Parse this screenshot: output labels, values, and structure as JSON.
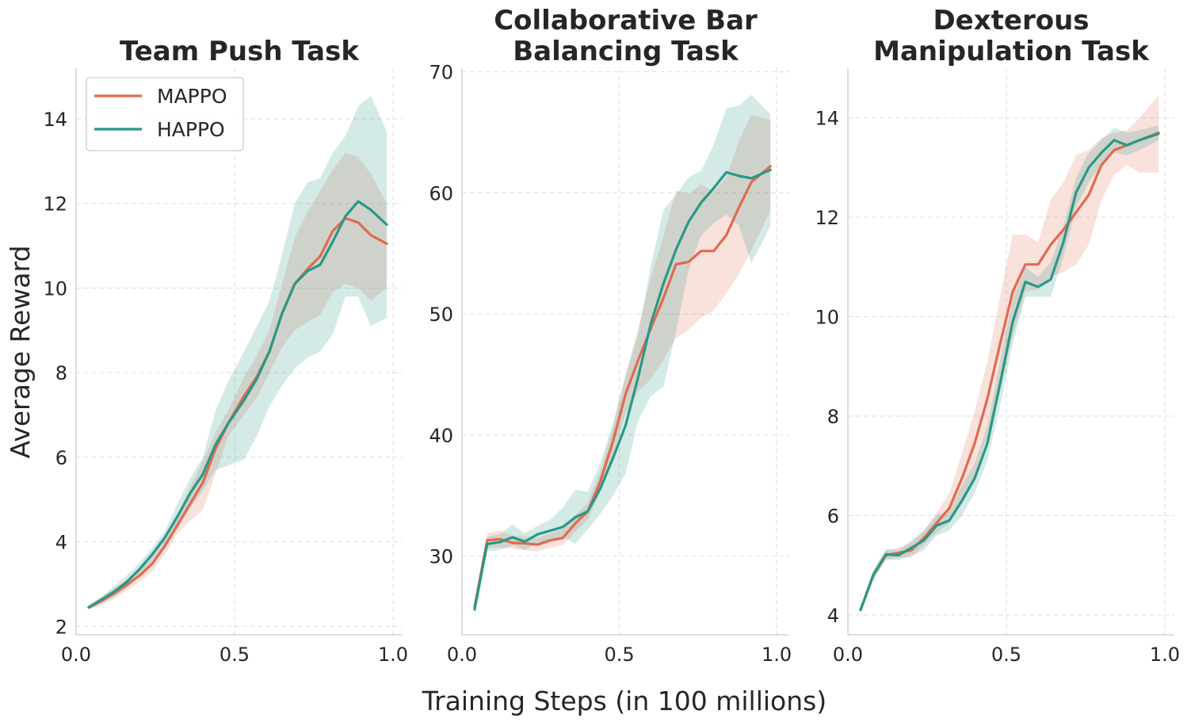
{
  "figure": {
    "xlabel": "Training Steps (in 100 millions)",
    "ylabel": "Average Reward"
  },
  "legend": [
    {
      "name": "MAPPO",
      "color": "#e06a50"
    },
    {
      "name": "HAPPO",
      "color": "#2a9886"
    }
  ],
  "chart_data": [
    {
      "type": "line",
      "title_lines": [
        "Team Push Task"
      ],
      "xlim": [
        0.0,
        1.03
      ],
      "ylim": [
        1.8,
        15.2
      ],
      "xticks": [
        0.0,
        0.5,
        1.0
      ],
      "xtick_labels": [
        "0.0",
        "0.5",
        "1.0"
      ],
      "yticks": [
        2,
        4,
        6,
        8,
        10,
        12,
        14
      ],
      "ytick_labels": [
        "2",
        "4",
        "6",
        "8",
        "10",
        "12",
        "14"
      ],
      "x": [
        0.04,
        0.08,
        0.12,
        0.16,
        0.2,
        0.24,
        0.28,
        0.32,
        0.36,
        0.4,
        0.44,
        0.48,
        0.53,
        0.57,
        0.61,
        0.65,
        0.69,
        0.73,
        0.77,
        0.81,
        0.85,
        0.89,
        0.93,
        0.98
      ],
      "series": [
        {
          "name": "MAPPO",
          "color": "#e06a50",
          "values": [
            2.45,
            2.6,
            2.78,
            2.98,
            3.2,
            3.48,
            3.9,
            4.4,
            4.9,
            5.4,
            6.2,
            6.8,
            7.45,
            7.9,
            8.5,
            9.4,
            10.1,
            10.45,
            10.75,
            11.35,
            11.65,
            11.55,
            11.25,
            11.05
          ],
          "lower": [
            2.4,
            2.5,
            2.65,
            2.85,
            3.05,
            3.3,
            3.7,
            4.2,
            4.5,
            4.75,
            5.6,
            6.5,
            7.0,
            7.4,
            8.0,
            8.6,
            9.0,
            9.2,
            9.35,
            9.9,
            10.1,
            10.0,
            9.7,
            10.0
          ],
          "upper": [
            2.5,
            2.7,
            2.9,
            3.1,
            3.35,
            3.65,
            4.1,
            4.6,
            5.3,
            5.9,
            6.6,
            7.1,
            7.9,
            8.4,
            9.0,
            10.1,
            11.2,
            11.8,
            12.3,
            12.8,
            13.2,
            13.1,
            12.7,
            12.0
          ]
        },
        {
          "name": "HAPPO",
          "color": "#2a9886",
          "values": [
            2.45,
            2.63,
            2.82,
            3.05,
            3.35,
            3.7,
            4.1,
            4.6,
            5.15,
            5.6,
            6.3,
            6.8,
            7.35,
            7.85,
            8.5,
            9.4,
            10.1,
            10.4,
            10.55,
            11.1,
            11.7,
            12.05,
            11.85,
            11.5
          ],
          "lower": [
            2.4,
            2.55,
            2.7,
            2.9,
            3.2,
            3.55,
            3.95,
            4.3,
            4.8,
            5.2,
            5.7,
            5.8,
            5.95,
            6.5,
            7.2,
            7.7,
            8.1,
            8.35,
            8.5,
            8.9,
            9.8,
            9.8,
            9.1,
            9.3
          ],
          "upper": [
            2.5,
            2.7,
            2.95,
            3.2,
            3.5,
            3.85,
            4.25,
            4.9,
            5.5,
            6.0,
            7.1,
            7.8,
            8.5,
            9.1,
            9.7,
            10.8,
            12.0,
            12.5,
            12.6,
            13.2,
            13.6,
            14.3,
            14.55,
            13.7
          ]
        }
      ]
    },
    {
      "type": "line",
      "title_lines": [
        "Collaborative Bar",
        "Balancing Task"
      ],
      "xlim": [
        0.0,
        1.04
      ],
      "ylim": [
        23.5,
        70.3
      ],
      "xticks": [
        0.0,
        0.5,
        1.0
      ],
      "xtick_labels": [
        "0.0",
        "0.5",
        "1.0"
      ],
      "yticks": [
        30,
        40,
        50,
        60,
        70
      ],
      "ytick_labels": [
        "30",
        "40",
        "50",
        "60",
        "70"
      ],
      "x": [
        0.04,
        0.08,
        0.12,
        0.16,
        0.2,
        0.24,
        0.28,
        0.32,
        0.36,
        0.4,
        0.44,
        0.48,
        0.52,
        0.56,
        0.6,
        0.64,
        0.68,
        0.72,
        0.76,
        0.8,
        0.84,
        0.88,
        0.92,
        0.98
      ],
      "series": [
        {
          "name": "MAPPO",
          "color": "#e06a50",
          "values": [
            25.8,
            31.3,
            31.4,
            31.1,
            31.05,
            30.95,
            31.3,
            31.5,
            32.7,
            33.7,
            36.2,
            39.5,
            43.4,
            46.2,
            48.8,
            51.3,
            54.1,
            54.3,
            55.2,
            55.2,
            56.5,
            58.8,
            60.9,
            62.2
          ],
          "lower": [
            25.2,
            30.7,
            30.7,
            30.6,
            30.5,
            30.4,
            30.7,
            30.9,
            32.0,
            33.0,
            35.3,
            38.3,
            41.8,
            43.6,
            44.6,
            46.2,
            48.0,
            48.7,
            49.7,
            50.3,
            51.7,
            53.3,
            55.3,
            58.5
          ],
          "upper": [
            26.4,
            31.9,
            32.1,
            31.7,
            31.6,
            31.5,
            31.9,
            32.2,
            33.4,
            34.4,
            37.1,
            40.7,
            45.0,
            48.8,
            53.0,
            56.4,
            60.2,
            59.9,
            60.7,
            60.1,
            61.3,
            64.3,
            66.5,
            66.0
          ]
        },
        {
          "name": "HAPPO",
          "color": "#2a9886",
          "values": [
            25.6,
            31.0,
            31.15,
            31.55,
            31.2,
            31.8,
            32.1,
            32.4,
            33.2,
            33.7,
            35.6,
            38.1,
            40.8,
            44.8,
            49.2,
            52.5,
            55.3,
            57.6,
            59.2,
            60.4,
            61.7,
            61.4,
            61.2,
            61.9
          ],
          "lower": [
            25.0,
            30.4,
            30.5,
            30.9,
            30.5,
            31.1,
            31.3,
            31.6,
            31.0,
            32.2,
            33.5,
            35.0,
            36.8,
            41.2,
            43.2,
            44.0,
            48.5,
            53.6,
            56.5,
            57.5,
            58.2,
            57.3,
            54.2,
            57.2
          ],
          "upper": [
            26.2,
            31.6,
            31.8,
            32.6,
            31.9,
            32.5,
            33.0,
            34.0,
            35.5,
            35.3,
            37.7,
            41.0,
            44.9,
            48.4,
            54.0,
            58.6,
            59.8,
            61.3,
            61.8,
            64.0,
            67.0,
            67.2,
            68.1,
            66.5
          ]
        }
      ]
    },
    {
      "type": "line",
      "title_lines": [
        "Dexterous",
        "Manipulation Task"
      ],
      "xlim": [
        0.0,
        1.03
      ],
      "ylim": [
        3.6,
        15.0
      ],
      "xticks": [
        0.0,
        0.5,
        1.0
      ],
      "xtick_labels": [
        "0.0",
        "0.5",
        "1.0"
      ],
      "yticks": [
        4,
        6,
        8,
        10,
        12,
        14
      ],
      "ytick_labels": [
        "4",
        "6",
        "8",
        "10",
        "12",
        "14"
      ],
      "x": [
        0.04,
        0.08,
        0.12,
        0.16,
        0.2,
        0.24,
        0.28,
        0.32,
        0.36,
        0.4,
        0.44,
        0.48,
        0.52,
        0.56,
        0.6,
        0.64,
        0.68,
        0.72,
        0.76,
        0.8,
        0.84,
        0.88,
        0.92,
        0.98
      ],
      "series": [
        {
          "name": "MAPPO",
          "color": "#e06a50",
          "values": [
            4.1,
            4.8,
            5.2,
            5.25,
            5.3,
            5.55,
            5.85,
            6.15,
            6.75,
            7.45,
            8.35,
            9.45,
            10.5,
            11.05,
            11.05,
            11.45,
            11.75,
            12.1,
            12.45,
            13.05,
            13.35,
            13.45,
            13.55,
            13.7
          ],
          "lower": [
            4.05,
            4.7,
            5.1,
            5.15,
            5.15,
            5.4,
            5.65,
            5.85,
            6.25,
            6.8,
            7.6,
            8.5,
            9.6,
            10.5,
            10.55,
            10.8,
            10.9,
            11.05,
            11.45,
            12.35,
            12.85,
            13.05,
            12.9,
            12.9
          ],
          "upper": [
            4.15,
            4.9,
            5.3,
            5.35,
            5.45,
            5.7,
            6.05,
            6.45,
            7.25,
            8.1,
            9.1,
            10.4,
            11.65,
            11.65,
            11.5,
            12.35,
            12.7,
            13.25,
            13.35,
            13.6,
            13.7,
            13.75,
            14.0,
            14.45
          ]
        },
        {
          "name": "HAPPO",
          "color": "#2a9886",
          "values": [
            4.1,
            4.8,
            5.22,
            5.2,
            5.35,
            5.5,
            5.8,
            5.9,
            6.3,
            6.75,
            7.45,
            8.65,
            9.9,
            10.7,
            10.6,
            10.75,
            11.5,
            12.5,
            13.0,
            13.3,
            13.55,
            13.45,
            13.55,
            13.68
          ],
          "lower": [
            4.05,
            4.7,
            5.12,
            5.1,
            5.2,
            5.3,
            5.6,
            5.7,
            6.0,
            6.45,
            7.1,
            8.2,
            9.45,
            10.4,
            10.4,
            10.4,
            11.2,
            12.2,
            12.7,
            13.05,
            13.3,
            13.25,
            13.35,
            13.55
          ],
          "upper": [
            4.15,
            4.9,
            5.32,
            5.3,
            5.5,
            5.7,
            6.0,
            6.1,
            6.6,
            7.05,
            7.8,
            9.1,
            10.35,
            11.0,
            10.8,
            11.1,
            11.8,
            12.8,
            13.3,
            13.55,
            13.8,
            13.7,
            13.75,
            13.85
          ]
        }
      ]
    }
  ]
}
